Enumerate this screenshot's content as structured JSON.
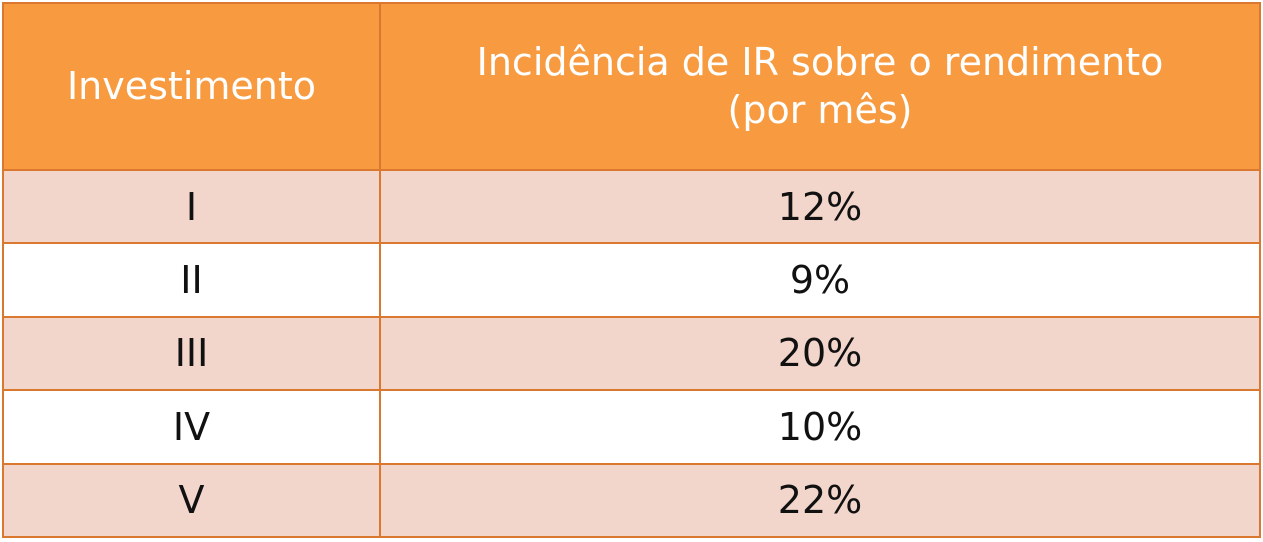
{
  "table": {
    "header": [
      "Investimento",
      [
        "Incidência de IR sobre o rendimento",
        "(por mês)"
      ]
    ],
    "rows": [
      [
        "I",
        "12%"
      ],
      [
        "II",
        "9%"
      ],
      [
        "III",
        "20%"
      ],
      [
        "IV",
        "10%"
      ],
      [
        "V",
        "22%"
      ]
    ]
  }
}
